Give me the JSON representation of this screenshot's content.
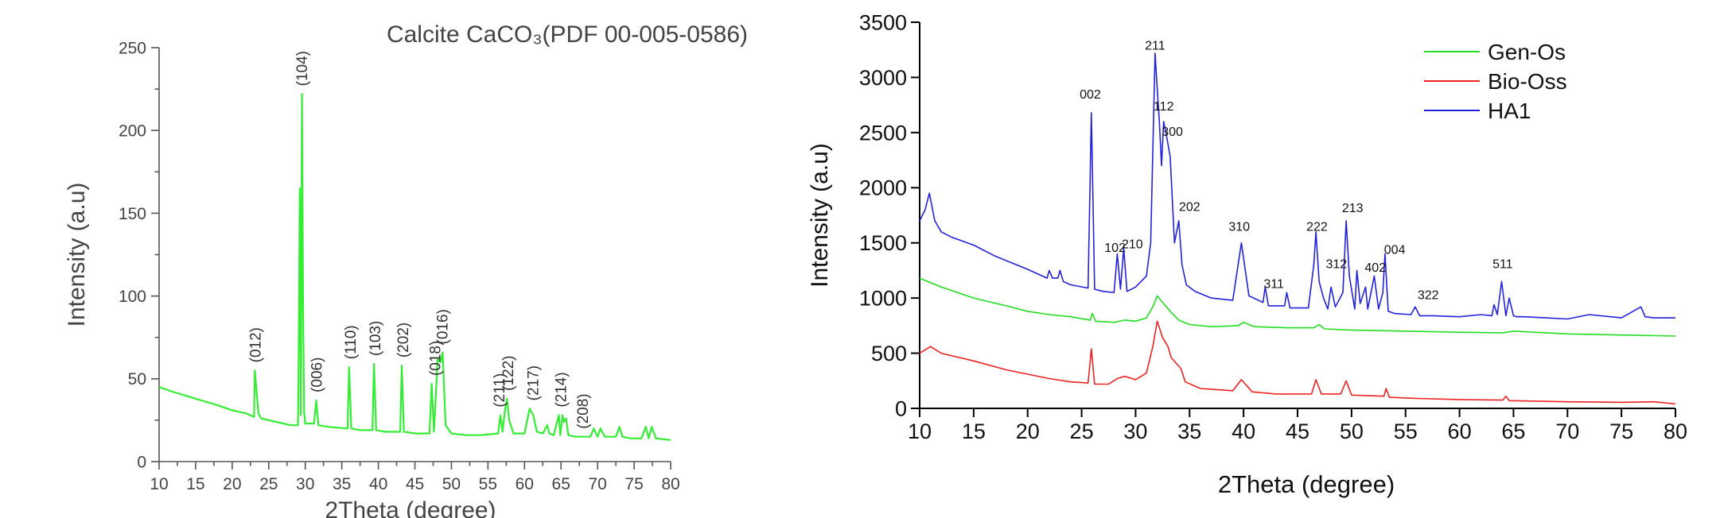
{
  "chart_data": [
    {
      "type": "line",
      "title": "Calcite CaCO₃(PDF 00-005-0586)",
      "xlabel": "2Theta (degree)",
      "ylabel": "Intensity (a.u)",
      "xlim": [
        10,
        80
      ],
      "ylim": [
        0,
        250
      ],
      "xticks": [
        10,
        15,
        20,
        25,
        30,
        35,
        40,
        45,
        50,
        55,
        60,
        65,
        70,
        75,
        80
      ],
      "yticks": [
        0,
        50,
        100,
        150,
        200,
        250
      ],
      "series": [
        {
          "color": "#33ee33",
          "x": [
            10,
            12,
            15,
            18,
            20,
            22,
            23.0,
            23.1,
            23.6,
            24.0,
            26,
            28,
            29.0,
            29.1,
            29.25,
            29.4,
            29.55,
            29.7,
            29.85,
            30.0,
            30.4,
            31.2,
            31.5,
            31.8,
            33,
            35.8,
            36.0,
            36.3,
            37.5,
            39.2,
            39.4,
            39.7,
            41,
            43.0,
            43.2,
            43.5,
            45,
            47.0,
            47.3,
            47.6,
            47.9,
            48.1,
            48.5,
            48.8,
            49.2,
            50,
            52,
            54,
            56.4,
            56.7,
            57.0,
            57.3,
            57.6,
            57.9,
            58.5,
            60,
            60.7,
            61.2,
            61.7,
            62.5,
            63.1,
            63.4,
            64,
            64.7,
            64.9,
            65.2,
            65.4,
            65.7,
            66.0,
            67,
            69,
            69.5,
            70,
            70.4,
            71,
            72.5,
            73.0,
            73.4,
            74.5,
            76,
            76.6,
            77.0,
            77.4,
            78,
            80
          ],
          "y": [
            45,
            42,
            38,
            34,
            31,
            29,
            27,
            55,
            29,
            26,
            24,
            22,
            22,
            60,
            165,
            28,
            222,
            90,
            30,
            23,
            23,
            23,
            37,
            22,
            21,
            20,
            57,
            20,
            19,
            19,
            59,
            19,
            18,
            18,
            58,
            18,
            17,
            17,
            47,
            18,
            42,
            62,
            60,
            66,
            22,
            17,
            16,
            16,
            17,
            28,
            18,
            30,
            38,
            25,
            17,
            17,
            32,
            28,
            18,
            17,
            22,
            17,
            16,
            28,
            16,
            28,
            24,
            26,
            16,
            15,
            15,
            20,
            15,
            20,
            15,
            15,
            21,
            15,
            14,
            14,
            21,
            14,
            21,
            14,
            13
          ]
        }
      ],
      "peaks": [
        {
          "label": "(012)",
          "x": 23.0
        },
        {
          "label": "(104)",
          "x": 29.4
        },
        {
          "label": "(006)",
          "x": 31.4
        },
        {
          "label": "(110)",
          "x": 36.0
        },
        {
          "label": "(103)",
          "x": 39.4
        },
        {
          "label": "(202)",
          "x": 43.2
        },
        {
          "label": "(018)",
          "x": 47.6
        },
        {
          "label": "(016)",
          "x": 48.6
        },
        {
          "label": "(211)",
          "x": 56.4
        },
        {
          "label": "(122)",
          "x": 57.6
        },
        {
          "label": "(217)",
          "x": 61.0
        },
        {
          "label": "(214)",
          "x": 64.8
        },
        {
          "label": "(208)",
          "x": 67.8
        }
      ],
      "grid": false
    },
    {
      "type": "line",
      "title": "",
      "xlabel": "2Theta (degree)",
      "ylabel": "Intensity (a.u)",
      "xlim": [
        10,
        80
      ],
      "ylim": [
        0,
        3500
      ],
      "xticks": [
        10,
        15,
        20,
        25,
        30,
        35,
        40,
        45,
        50,
        55,
        60,
        65,
        70,
        75,
        80
      ],
      "yticks": [
        0,
        500,
        1000,
        1500,
        2000,
        2500,
        3000,
        3500
      ],
      "legend_position": "top-right",
      "grid": false,
      "series": [
        {
          "name": "Gen-Os",
          "color": "#22dd22",
          "x": [
            10,
            12,
            15,
            18,
            20,
            22,
            24,
            25.8,
            26,
            26.3,
            28,
            29,
            30,
            31,
            31.6,
            32,
            32.5,
            33.2,
            34,
            35,
            37,
            39.5,
            40,
            41,
            44,
            46.5,
            47,
            47.5,
            50,
            55,
            60,
            64,
            65,
            70,
            75,
            80
          ],
          "y": [
            1180,
            1100,
            1000,
            930,
            880,
            850,
            830,
            800,
            860,
            790,
            780,
            800,
            790,
            820,
            920,
            1020,
            960,
            880,
            800,
            760,
            740,
            750,
            780,
            740,
            730,
            730,
            760,
            720,
            710,
            700,
            690,
            685,
            700,
            675,
            665,
            655
          ]
        },
        {
          "name": "Bio-Oss",
          "color": "#ee2222",
          "x": [
            10,
            11,
            12,
            15,
            18,
            20,
            22,
            24,
            25.6,
            25.9,
            26.2,
            27.5,
            28.3,
            29,
            30,
            31,
            31.6,
            32.0,
            32.5,
            33.0,
            33.3,
            34.2,
            34.6,
            36,
            39,
            39.8,
            40.8,
            43,
            46.3,
            46.7,
            47.2,
            49,
            49.5,
            50,
            53,
            53.2,
            53.5,
            56,
            60,
            64,
            64.3,
            64.6,
            70,
            75,
            78,
            80
          ],
          "y": [
            500,
            560,
            500,
            430,
            350,
            310,
            270,
            240,
            230,
            540,
            220,
            220,
            270,
            290,
            260,
            320,
            560,
            790,
            640,
            560,
            460,
            360,
            240,
            180,
            160,
            260,
            150,
            130,
            130,
            260,
            130,
            130,
            250,
            120,
            110,
            180,
            100,
            90,
            80,
            75,
            110,
            70,
            60,
            55,
            60,
            40
          ]
        },
        {
          "name": "HA1",
          "color": "#2222dd",
          "x": [
            10,
            10.5,
            10.9,
            11.4,
            12,
            13,
            15,
            17,
            20,
            21.8,
            22,
            22.3,
            22.8,
            23,
            23.3,
            24,
            25.6,
            25.9,
            26.2,
            27,
            28.0,
            28.3,
            28.6,
            28.9,
            29.2,
            30,
            31,
            31.4,
            31.8,
            32.0,
            32.2,
            32.4,
            32.6,
            32.9,
            33.2,
            33.6,
            34.0,
            34.3,
            34.7,
            35.5,
            37,
            39,
            39.8,
            40.5,
            41.8,
            42.0,
            42.3,
            43.8,
            44.0,
            44.3,
            46,
            46.5,
            46.7,
            47,
            47.4,
            47.8,
            48.1,
            48.5,
            49.2,
            49.5,
            49.8,
            50.3,
            50.5,
            50.8,
            51.3,
            51.5,
            51.8,
            52.1,
            52.5,
            52.9,
            53.1,
            53.4,
            54,
            55.5,
            55.9,
            56.3,
            57.5,
            60,
            62,
            63,
            63.2,
            63.5,
            63.9,
            64.3,
            64.6,
            65,
            65.3,
            66,
            68,
            70,
            72,
            75,
            76.8,
            77.2,
            78,
            80
          ],
          "y": [
            1700,
            1800,
            1950,
            1700,
            1600,
            1550,
            1480,
            1380,
            1260,
            1180,
            1250,
            1180,
            1180,
            1250,
            1150,
            1120,
            1090,
            2680,
            1080,
            1060,
            1050,
            1400,
            1080,
            1450,
            1060,
            1100,
            1200,
            1500,
            3220,
            2900,
            2600,
            2200,
            2600,
            2450,
            2280,
            1500,
            1700,
            1300,
            1120,
            1060,
            1000,
            980,
            1500,
            1020,
            960,
            1100,
            930,
            930,
            1050,
            910,
            910,
            1300,
            1600,
            1150,
            1000,
            900,
            1100,
            920,
            1050,
            1700,
            1200,
            900,
            1250,
            950,
            1100,
            900,
            1050,
            1200,
            900,
            1050,
            1400,
            880,
            860,
            850,
            920,
            840,
            840,
            830,
            850,
            840,
            940,
            850,
            1150,
            840,
            1000,
            840,
            830,
            830,
            820,
            810,
            850,
            820,
            920,
            830,
            820,
            820
          ]
        }
      ],
      "peaks": [
        {
          "label": "211",
          "x": 31.8,
          "y": 3250
        },
        {
          "label": "002",
          "x": 25.8,
          "y": 2810
        },
        {
          "label": "112",
          "x": 32.6,
          "y": 2700
        },
        {
          "label": "300",
          "x": 33.4,
          "y": 2470
        },
        {
          "label": "202",
          "x": 35.0,
          "y": 1790
        },
        {
          "label": "102",
          "x": 28.1,
          "y": 1420
        },
        {
          "label": "210",
          "x": 29.7,
          "y": 1450
        },
        {
          "label": "310",
          "x": 39.6,
          "y": 1610
        },
        {
          "label": "311",
          "x": 42.8,
          "y": 1090
        },
        {
          "label": "222",
          "x": 46.8,
          "y": 1610
        },
        {
          "label": "312",
          "x": 48.6,
          "y": 1270
        },
        {
          "label": "213",
          "x": 50.1,
          "y": 1780
        },
        {
          "label": "402",
          "x": 52.2,
          "y": 1240
        },
        {
          "label": "004",
          "x": 54.0,
          "y": 1400
        },
        {
          "label": "322",
          "x": 57.1,
          "y": 990
        },
        {
          "label": "511",
          "x": 64.0,
          "y": 1270
        }
      ]
    }
  ]
}
